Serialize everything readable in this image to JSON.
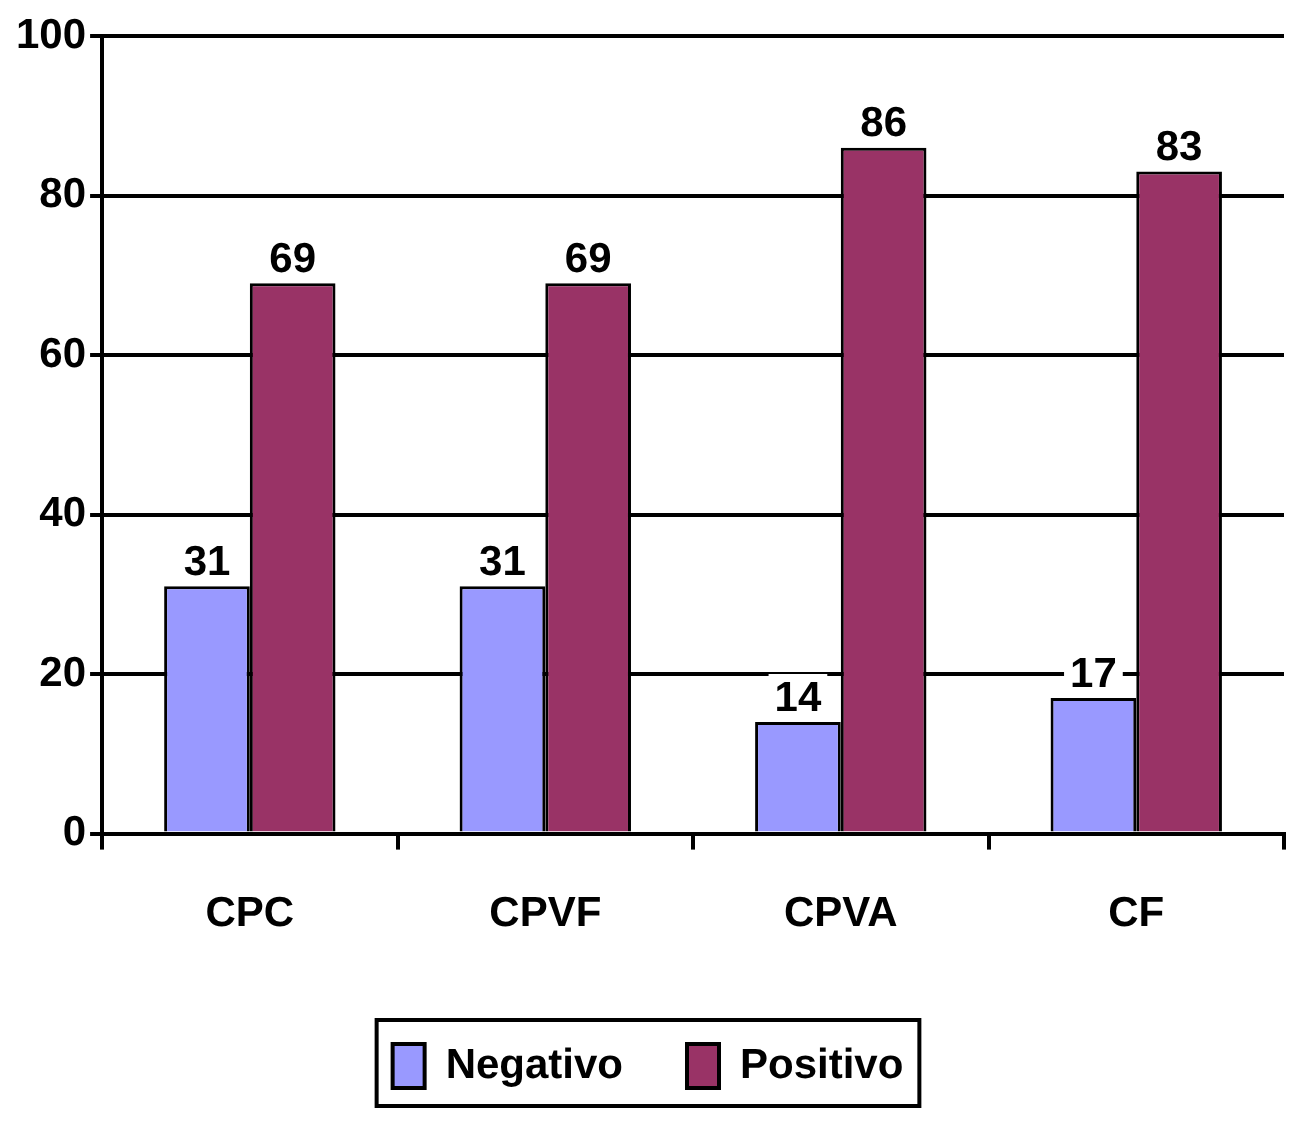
{
  "chart_data": {
    "type": "bar",
    "categories": [
      "CPC",
      "CPVF",
      "CPVA",
      "CF"
    ],
    "series": [
      {
        "name": "Negativo",
        "color": "#9999ff",
        "values": [
          31,
          31,
          14,
          17
        ]
      },
      {
        "name": "Positivo",
        "color": "#993366",
        "values": [
          69,
          69,
          86,
          83
        ]
      }
    ],
    "ylim": [
      0,
      100
    ],
    "yticks": [
      0,
      20,
      40,
      60,
      80,
      100
    ],
    "grid": "y",
    "legend": "bottom",
    "data_labels": true
  }
}
